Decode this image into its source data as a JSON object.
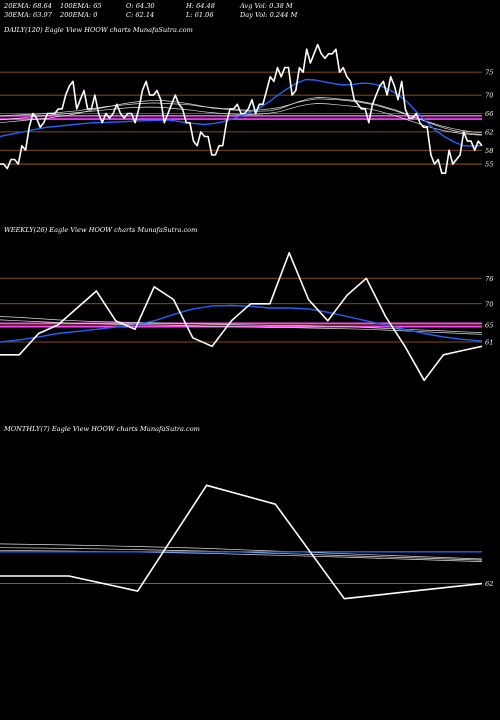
{
  "header": {
    "row1": [
      "20EMA: 68.64",
      "100EMA: 65",
      "O: 64.30",
      "H: 64.48",
      "Avg Vol: 0.38  M"
    ],
    "row2": [
      "30EMA: 63.97",
      "200EMA: 0",
      "C: 62.14",
      "L: 61.06",
      "Day Vol: 0.244 M"
    ]
  },
  "colors": {
    "background": "#000000",
    "price": "#ffffff",
    "ema_blue": "#1e63ff",
    "ema_pink": "#ff44ff",
    "level_lines": "#b8621a",
    "ma_white": "#dddddd"
  },
  "chart_data": [
    {
      "type": "line",
      "label": "DAILY(120) Eagle  View  HOOW charts MunafaSutra.com",
      "y_ticks": [
        75,
        70,
        66,
        62,
        58,
        55
      ],
      "ylim": [
        45,
        82
      ],
      "level_lines": [
        75,
        70,
        66,
        62,
        58,
        55
      ],
      "pink_levels": [
        65.5,
        64.8
      ],
      "series": [
        {
          "role": "price",
          "values": [
            55,
            55,
            54,
            56,
            56,
            55,
            59,
            58,
            63,
            66,
            65,
            63,
            64,
            66,
            66,
            66,
            67,
            67,
            70,
            72,
            73,
            67,
            69,
            71,
            67,
            67,
            70,
            66,
            64,
            66,
            65,
            66,
            68,
            66,
            65,
            66,
            66,
            64,
            67,
            71,
            73,
            70,
            70,
            71,
            69,
            64,
            66,
            68,
            70,
            68,
            67,
            64,
            64,
            60,
            59,
            62,
            61,
            61,
            57,
            57,
            59,
            59,
            64,
            67,
            67,
            68,
            66,
            66,
            67,
            69,
            66,
            68,
            68,
            71,
            74,
            73,
            76,
            74,
            76,
            76,
            70,
            71,
            76,
            75,
            80,
            77,
            79,
            81,
            79,
            78,
            79,
            79,
            80,
            75,
            76,
            74,
            73,
            69,
            68,
            67,
            67,
            64,
            68,
            70,
            72,
            73,
            70,
            74,
            72,
            69,
            73,
            67,
            65,
            65,
            66,
            64,
            63,
            63,
            57,
            55,
            56,
            53,
            53,
            58,
            55,
            56,
            57,
            62,
            60,
            60,
            58,
            60,
            59
          ]
        },
        {
          "role": "ema-blue",
          "values": [
            61,
            61.4,
            61.8,
            62.2,
            62.6,
            63,
            63.2,
            63.4,
            63.6,
            63.8,
            64,
            64,
            64.1,
            64.2,
            64.3,
            64.4,
            64.5,
            64.5,
            64.6,
            64.4,
            64,
            63.8,
            63.6,
            63.8,
            64.2,
            64.8,
            65.5,
            66.3,
            67.2,
            68.5,
            70,
            71.4,
            72.6,
            73.4,
            73.3,
            72.9,
            72.5,
            72.2,
            72.3,
            72.6,
            72.5,
            72.1,
            71.2,
            70,
            68.4,
            66.2,
            64.2,
            62.3,
            60.9,
            59.8,
            59,
            58.9,
            59
          ]
        },
        {
          "role": "ma-white-1",
          "values": [
            64,
            64.2,
            64.4,
            64.6,
            64.8,
            65,
            65.3,
            65.6,
            66,
            66.5,
            67,
            67.4,
            67.8,
            68.2,
            68.5,
            68.7,
            68.9,
            68.8,
            68.6,
            68.3,
            68,
            67.6,
            67.2,
            67,
            66.8,
            66.6,
            66.5,
            66.5,
            66.6,
            67,
            67.8,
            68.6,
            69.2,
            69.5,
            69.4,
            69.2,
            69,
            68.8,
            68.4,
            68,
            67.4,
            66.8,
            66,
            65.2,
            64.4,
            63.6,
            62.9,
            62.3,
            61.9,
            61.6,
            61.4
          ]
        },
        {
          "role": "ma-white-2",
          "values": [
            65.4,
            65.6,
            65.7,
            65.8,
            65.9,
            66,
            66.2,
            66.4,
            66.6,
            66.9,
            67.2,
            67.5,
            67.7,
            67.9,
            68.1,
            68.2,
            68.3,
            68.2,
            68.1,
            68,
            67.8,
            67.5,
            67.3,
            67.1,
            67,
            66.8,
            66.7,
            66.8,
            67,
            67.3,
            67.9,
            68.5,
            68.9,
            69.2,
            69.1,
            69,
            68.8,
            68.6,
            68.2,
            67.8,
            67.2,
            66.6,
            65.9,
            65.2,
            64.5,
            63.8,
            63.2,
            62.7,
            62.3,
            62,
            61.8
          ]
        },
        {
          "role": "ma-white-3",
          "values": [
            64.6,
            64.8,
            65,
            65.2,
            65.4,
            65.6,
            65.8,
            66,
            66.2,
            66.4,
            66.6,
            66.8,
            67,
            67.2,
            67.3,
            67.4,
            67.4,
            67.3,
            67.1,
            66.9,
            66.7,
            66.4,
            66.2,
            66,
            65.9,
            65.8,
            65.8,
            65.9,
            66.1,
            66.4,
            67,
            67.6,
            68,
            68.2,
            68.1,
            67.9,
            67.7,
            67.5,
            67.1,
            66.7,
            66.1,
            65.5,
            64.8,
            64.1,
            63.4,
            62.8,
            62.3,
            61.9,
            61.6,
            61.4,
            61.3
          ]
        }
      ]
    },
    {
      "type": "line",
      "label": "WEEKLY(26) Eagle  View  HOOW charts MunafaSutra.com",
      "y_ticks": [
        76,
        70,
        65,
        61
      ],
      "ylim": [
        45,
        85
      ],
      "level_lines": [
        76,
        70,
        65,
        61
      ],
      "pink_levels": [
        65.4,
        64.6
      ],
      "series": [
        {
          "role": "price",
          "values": [
            58,
            58,
            63,
            65,
            69,
            73,
            66,
            64,
            74,
            71,
            62,
            60,
            66,
            70,
            70,
            82,
            71,
            66,
            72,
            76,
            67,
            60,
            52,
            58,
            59,
            60
          ]
        },
        {
          "role": "ema-blue",
          "values": [
            61,
            61.5,
            62.2,
            63,
            63.5,
            64,
            64.5,
            65,
            66,
            67.5,
            68.8,
            69.5,
            69.6,
            69.4,
            69,
            69,
            68.8,
            68,
            67,
            66,
            65,
            64,
            63,
            62.2,
            61.6,
            61.2
          ]
        },
        {
          "role": "ma-white-1",
          "values": [
            67,
            66.8,
            66.5,
            66.2,
            66,
            65.8,
            65.7,
            65.6,
            65.5,
            65.4,
            65.3,
            65.2,
            65.1,
            65,
            64.9,
            64.9,
            64.8,
            64.7,
            64.6,
            64.4,
            64.2,
            64,
            63.8,
            63.6,
            63.4,
            63.2
          ]
        },
        {
          "role": "ma-white-2",
          "values": [
            66.2,
            66,
            65.8,
            65.6,
            65.4,
            65.3,
            65.2,
            65.1,
            65,
            64.9,
            64.8,
            64.7,
            64.6,
            64.5,
            64.4,
            64.4,
            64.3,
            64.2,
            64.1,
            64,
            63.8,
            63.6,
            63.4,
            63.2,
            63,
            62.8
          ]
        }
      ]
    },
    {
      "type": "line",
      "label": "MONTHLY(7) Eagle  View  HOOW charts MunafaSutra.com",
      "y_ticks": [
        62
      ],
      "ylim": [
        55,
        100
      ],
      "level_lines": [
        62
      ],
      "pink_levels": [],
      "series": [
        {
          "role": "price",
          "values": [
            64,
            64,
            60,
            88,
            83,
            58,
            60,
            62
          ]
        },
        {
          "role": "ema-blue",
          "values": [
            70.4,
            70.4,
            70.4,
            70.4,
            70.4,
            70.4,
            70.4,
            70.4
          ]
        },
        {
          "role": "ma-white-1",
          "values": [
            72.5,
            72.2,
            71.8,
            71.3,
            70.6,
            69.9,
            69.2,
            68.5
          ]
        },
        {
          "role": "ma-white-2",
          "values": [
            71.5,
            71.3,
            71,
            70.6,
            70,
            69.4,
            68.8,
            68.2
          ]
        },
        {
          "role": "ma-white-3",
          "values": [
            70.8,
            70.6,
            70.3,
            70,
            69.5,
            69,
            68.4,
            67.8
          ]
        }
      ]
    }
  ]
}
